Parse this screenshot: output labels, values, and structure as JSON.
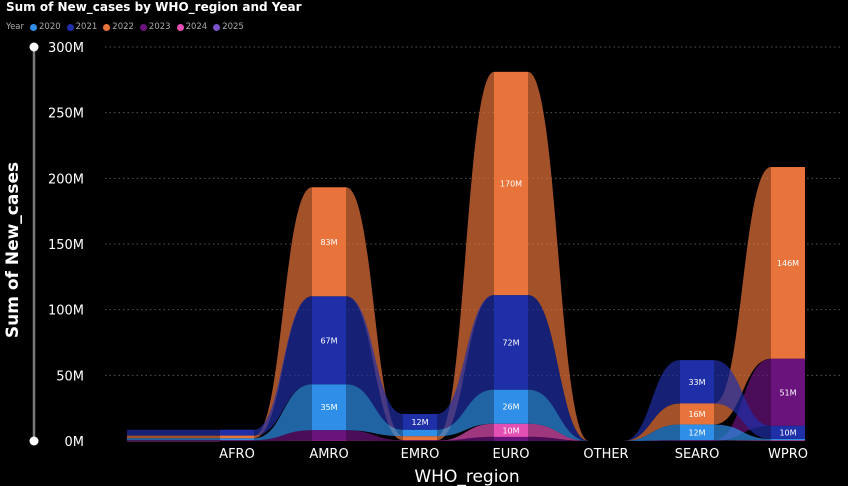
{
  "title": "Sum of New_cases by WHO_region and Year",
  "legend_title": "Year",
  "legend": [
    {
      "label": "2020",
      "color": "#2f8fe8"
    },
    {
      "label": "2021",
      "color": "#1f2fa8"
    },
    {
      "label": "2022",
      "color": "#e8743b"
    },
    {
      "label": "2023",
      "color": "#6b137d"
    },
    {
      "label": "2024",
      "color": "#e34fb3"
    },
    {
      "label": "2025",
      "color": "#7a52c9"
    }
  ],
  "chart_data": {
    "type": "bar",
    "stacked": true,
    "ribbons": true,
    "title": "Sum of New_cases by WHO_region and Year",
    "xlabel": "WHO_region",
    "ylabel": "Sum of New_cases",
    "ylim": [
      0,
      300000000
    ],
    "y_ticks": [
      "0M",
      "50M",
      "100M",
      "150M",
      "200M",
      "250M",
      "300M"
    ],
    "categories": [
      "AFRO",
      "AMRO",
      "EMRO",
      "EURO",
      "OTHER",
      "SEARO",
      "WPRO"
    ],
    "series": [
      {
        "name": "2020",
        "color": "#2f8fe8",
        "values": [
          1500000,
          35000000,
          5000000,
          26000000,
          0,
          12000000,
          1000000
        ]
      },
      {
        "name": "2021",
        "color": "#1f2fa8",
        "values": [
          4500000,
          67000000,
          12000000,
          72000000,
          0,
          33000000,
          10000000
        ]
      },
      {
        "name": "2022",
        "color": "#e8743b",
        "values": [
          2000000,
          83000000,
          3000000,
          170000000,
          0,
          16000000,
          146000000
        ]
      },
      {
        "name": "2023",
        "color": "#6b137d",
        "values": [
          500000,
          8000000,
          500000,
          3000000,
          0,
          500000,
          51000000
        ]
      },
      {
        "name": "2024",
        "color": "#e34fb3",
        "values": [
          100000,
          200000,
          100000,
          10000000,
          0,
          100000,
          500000
        ]
      },
      {
        "name": "2025",
        "color": "#7a52c9",
        "values": [
          0,
          0,
          0,
          100000,
          0,
          0,
          100000
        ]
      }
    ],
    "data_labels": [
      {
        "category": "AMRO",
        "series": "2022",
        "text": "83M"
      },
      {
        "category": "AMRO",
        "series": "2021",
        "text": "67M"
      },
      {
        "category": "AMRO",
        "series": "2020",
        "text": "35M"
      },
      {
        "category": "EMRO",
        "series": "2021",
        "text": "12M"
      },
      {
        "category": "EURO",
        "series": "2022",
        "text": "170M"
      },
      {
        "category": "EURO",
        "series": "2021",
        "text": "72M"
      },
      {
        "category": "EURO",
        "series": "2020",
        "text": "26M"
      },
      {
        "category": "EURO",
        "series": "2024",
        "text": "10M"
      },
      {
        "category": "SEARO",
        "series": "2021",
        "text": "33M"
      },
      {
        "category": "SEARO",
        "series": "2022",
        "text": "16M"
      },
      {
        "category": "SEARO",
        "series": "2020",
        "text": "12M"
      },
      {
        "category": "WPRO",
        "series": "2022",
        "text": "146M"
      },
      {
        "category": "WPRO",
        "series": "2023",
        "text": "51M"
      },
      {
        "category": "WPRO",
        "series": "2021",
        "text": "10M"
      }
    ],
    "grid": true,
    "legend_position": "top-left"
  }
}
